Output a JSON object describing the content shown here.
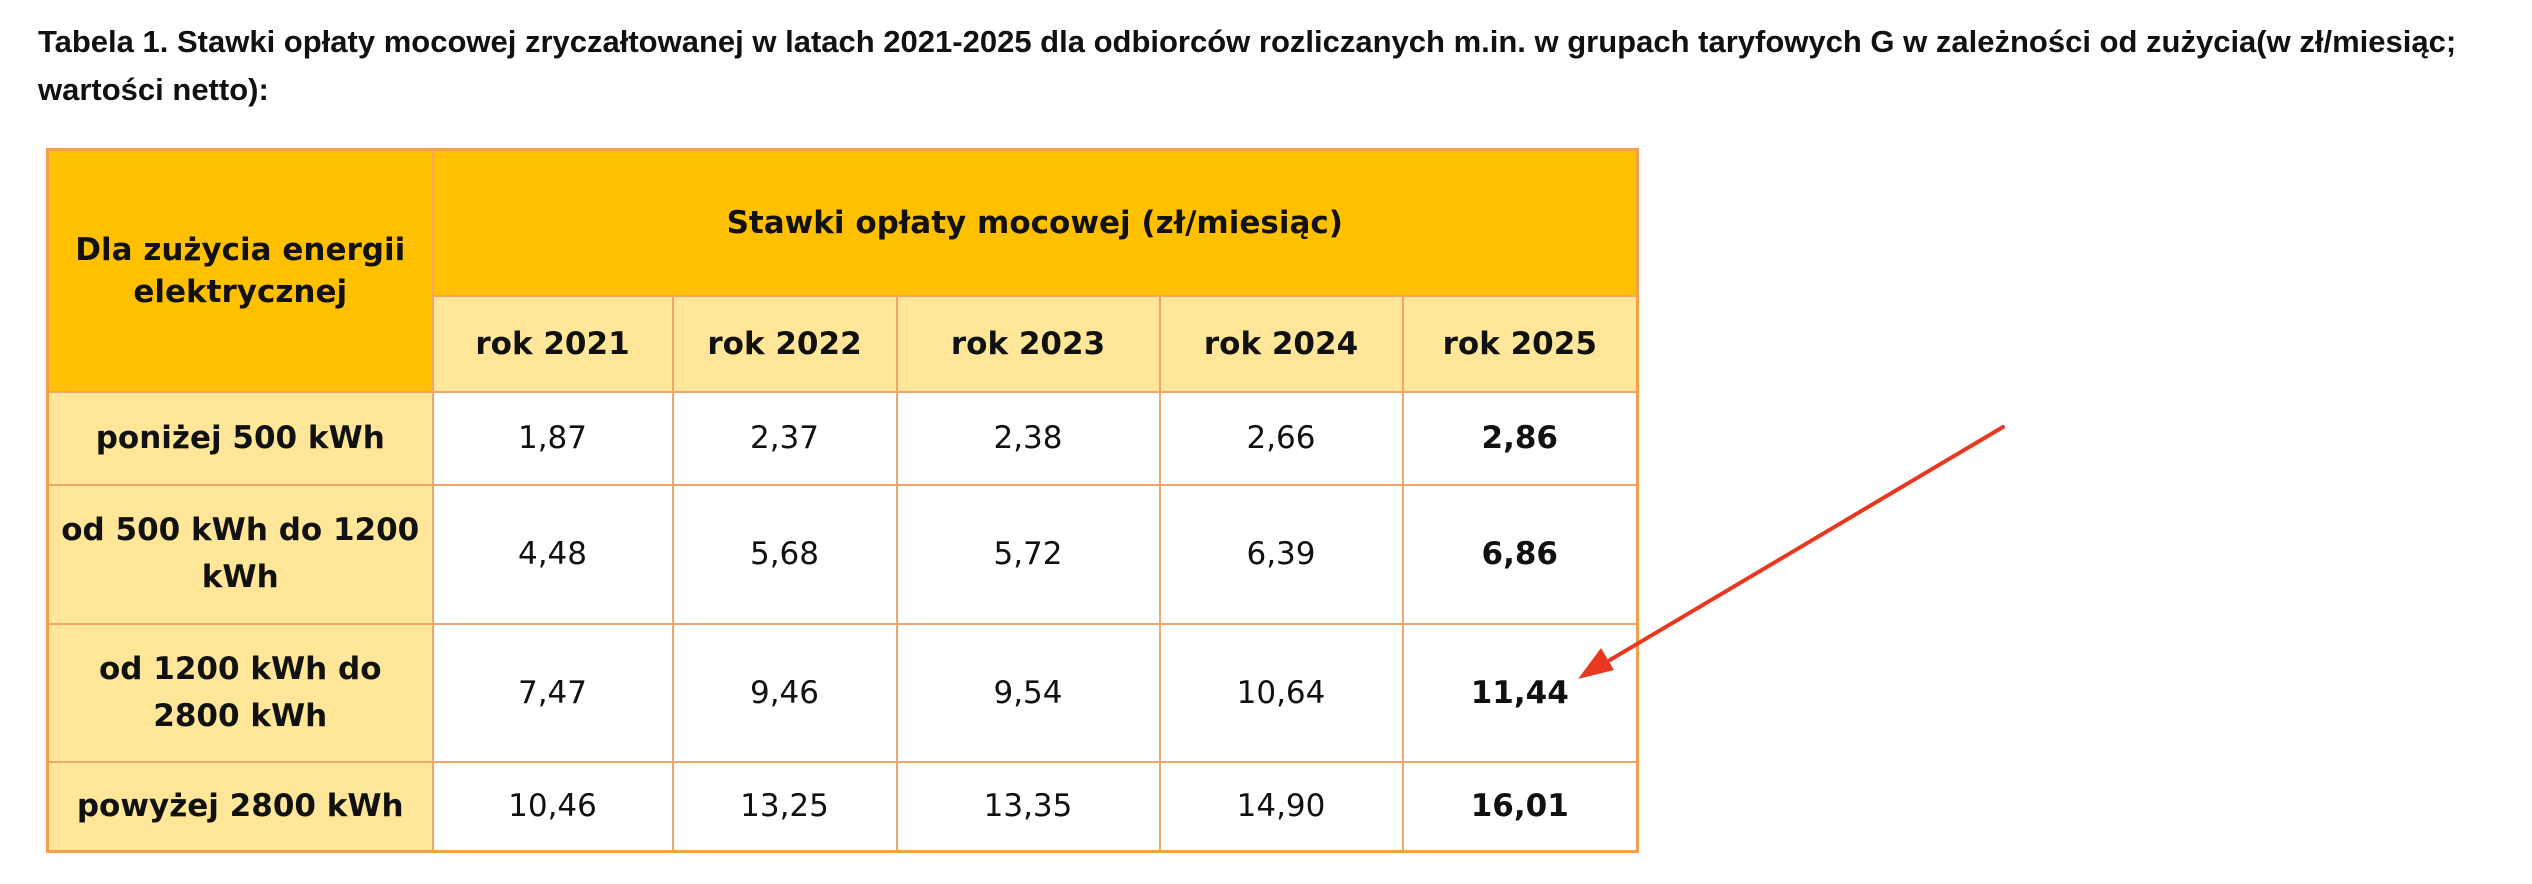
{
  "caption": "Tabela 1. Stawki opłaty mocowej zryczałtowanej w latach 2021-2025 dla odbiorców rozliczanych m.in. w grupach taryfowych G w zależności od zużycia(w zł/miesiąc; wartości netto):",
  "table": {
    "row_header": "Dla zużycia energii elektrycznej",
    "group_header": "Stawki opłaty mocowej (zł/miesiąc)",
    "years": [
      "rok 2021",
      "rok 2022",
      "rok 2023",
      "rok 2024",
      "rok 2025"
    ],
    "rows": [
      {
        "label": "poniżej 500 kWh",
        "values": [
          "1,87",
          "2,37",
          "2,38",
          "2,66",
          "2,86"
        ]
      },
      {
        "label": "od 500 kWh do 1200 kWh",
        "values": [
          "4,48",
          "5,68",
          "5,72",
          "6,39",
          "6,86"
        ]
      },
      {
        "label": "od 1200 kWh do 2800 kWh",
        "values": [
          "7,47",
          "9,46",
          "9,54",
          "10,64",
          "11,44"
        ]
      },
      {
        "label": "powyżej 2800 kWh",
        "values": [
          "10,46",
          "13,25",
          "13,35",
          "14,90",
          "16,01"
        ]
      }
    ]
  },
  "colors": {
    "header": "#ffc000",
    "subheader": "#ffe699",
    "border": "#f2a56b",
    "arrow": "#e8381f"
  },
  "annotation": {
    "icon": "red-arrow-icon"
  }
}
